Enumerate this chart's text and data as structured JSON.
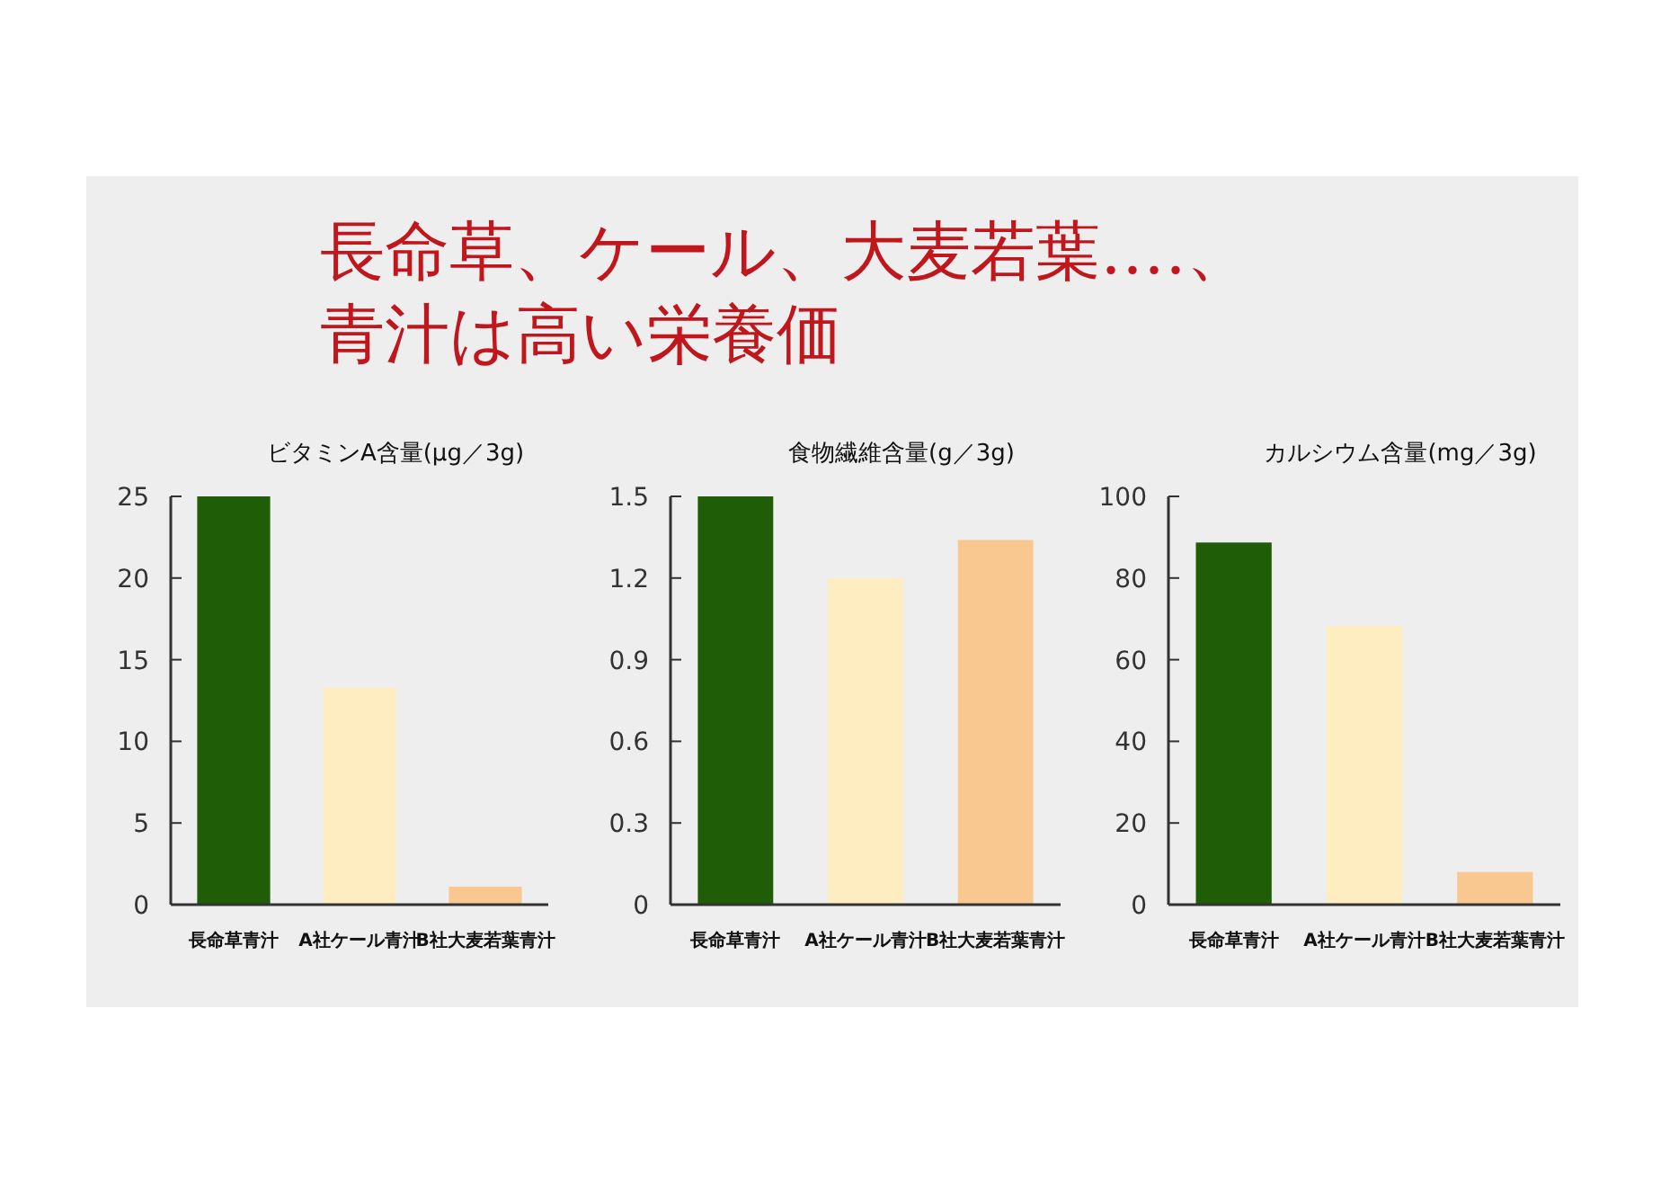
{
  "chart_data": [
    {
      "type": "bar",
      "title": "ビタミンA含量(μg／3g)",
      "annotations": [
        "長命草、ケール、大麦若葉‥‥、",
        "青汁は高い栄養価"
      ],
      "categories": [
        "長命草青汁",
        "A社ケール青汁",
        "B社大麦若葉青汁"
      ],
      "values": [
        25,
        13.3,
        1.1
      ],
      "colors": [
        "#1f5e06",
        "#fdedc0",
        "#f9c890"
      ],
      "ylim": [
        0,
        25
      ],
      "yticks": [
        0,
        5,
        10,
        15,
        20,
        25
      ]
    },
    {
      "type": "bar",
      "title": "食物繊維含量(g／3g)",
      "categories": [
        "長命草青汁",
        "A社ケール青汁",
        "B社大麦若葉青汁"
      ],
      "values": [
        1.5,
        1.2,
        1.34
      ],
      "colors": [
        "#1f5e06",
        "#fdedc0",
        "#f9c890"
      ],
      "ylim": [
        0,
        1.5
      ],
      "yticks": [
        0,
        0.3,
        0.6,
        0.9,
        1.2,
        1.5
      ]
    },
    {
      "type": "bar",
      "title": "カルシウム含量(mg／3g)",
      "categories": [
        "長命草青汁",
        "A社ケール青汁",
        "B社大麦若葉青汁"
      ],
      "values": [
        88.7,
        68.3,
        8
      ],
      "colors": [
        "#1f5e06",
        "#fdedc0",
        "#f9c890"
      ],
      "ylim": [
        0,
        100
      ],
      "yticks": [
        0,
        20,
        40,
        60,
        80,
        100
      ]
    }
  ]
}
